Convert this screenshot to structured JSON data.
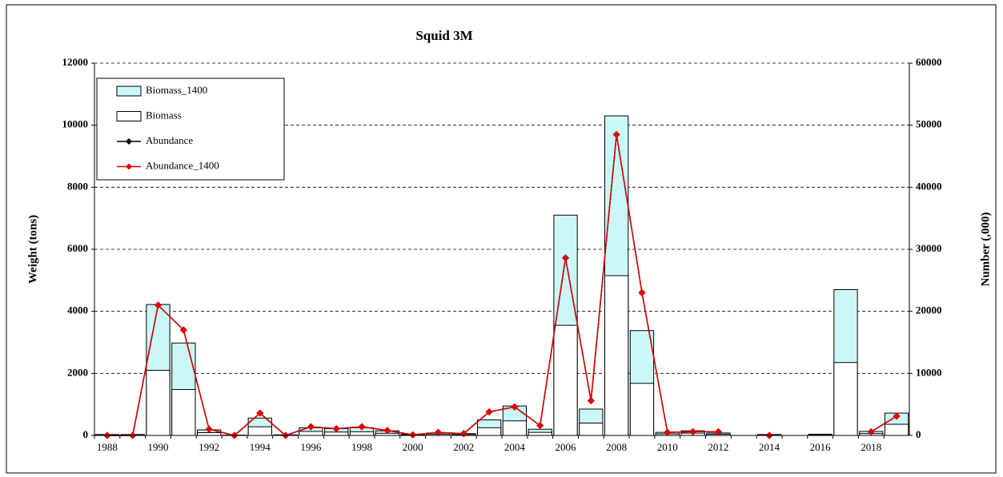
{
  "chart_data": {
    "type": "bar",
    "title": "Squid 3M",
    "y_label": "Weight (tons)",
    "y2_label": "Number  (,000)",
    "categories": [
      "1988",
      null,
      "1990",
      null,
      "1992",
      null,
      "1994",
      null,
      "1996",
      null,
      "1998",
      null,
      "2000",
      null,
      "2002",
      null,
      "2004",
      null,
      "2006",
      null,
      "2008",
      null,
      "2010",
      null,
      "2012",
      null,
      "2014",
      null,
      "2016",
      null,
      "2018",
      null
    ],
    "ylim": [
      0,
      12000
    ],
    "yticks": [
      0,
      2000,
      4000,
      6000,
      8000,
      10000,
      12000
    ],
    "y2lim": [
      0,
      60000
    ],
    "y2ticks": [
      0,
      10000,
      20000,
      30000,
      40000,
      50000,
      60000
    ],
    "grid": true,
    "legend": "upper left",
    "series": [
      {
        "name": "Biomass_1400",
        "type": "bar",
        "color": "#ccf7f7",
        "values": [
          30,
          30,
          4220,
          2980,
          180,
          10,
          560,
          20,
          250,
          220,
          250,
          150,
          40,
          80,
          60,
          500,
          950,
          200,
          7100,
          850,
          10300,
          3380,
          100,
          150,
          80,
          null,
          30,
          null,
          40,
          4700,
          130,
          720
        ]
      },
      {
        "name": "Biomass",
        "type": "bar",
        "color": "#ffffff",
        "values": [
          15,
          15,
          2100,
          1480,
          90,
          5,
          280,
          10,
          130,
          110,
          120,
          70,
          20,
          40,
          30,
          250,
          470,
          100,
          3550,
          400,
          5150,
          1680,
          50,
          75,
          40,
          null,
          15,
          null,
          20,
          2350,
          60,
          360
        ]
      },
      {
        "name": "Abundance",
        "type": "line",
        "axis": "y2",
        "color": "#000000",
        "values": [
          0,
          0,
          21000,
          17000,
          1000,
          0,
          3600,
          0,
          1400,
          1100,
          1400,
          800,
          100,
          500,
          300,
          3800,
          4600,
          1600,
          28600,
          5600,
          48500,
          23000,
          500,
          600,
          600,
          null,
          0,
          null,
          null,
          null,
          600,
          3100
        ]
      },
      {
        "name": "Abundance_1400",
        "type": "line",
        "axis": "y2",
        "color": "#e00000",
        "values": [
          0,
          0,
          21000,
          17000,
          1000,
          0,
          3600,
          0,
          1400,
          1100,
          1400,
          800,
          100,
          500,
          300,
          3800,
          4600,
          1600,
          28600,
          5600,
          48500,
          23000,
          500,
          600,
          600,
          null,
          0,
          null,
          null,
          null,
          600,
          3100
        ]
      }
    ]
  }
}
